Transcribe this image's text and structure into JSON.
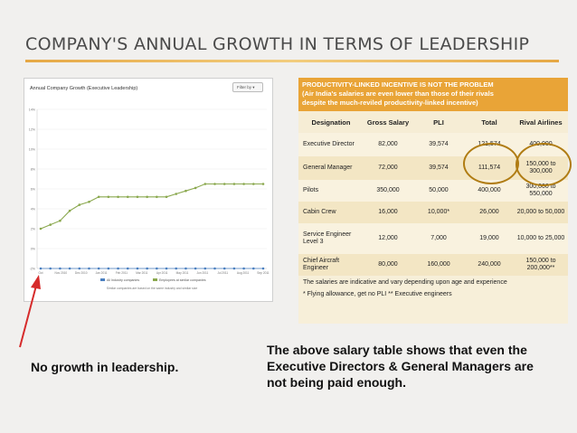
{
  "slide": {
    "title": "COMPANY'S ANNUAL GROWTH IN TERMS OF LEADERSHIP"
  },
  "chart": {
    "title": "Annual Company Growth (Executive Leadership)",
    "filter_label": "Filter by",
    "legend": [
      "All Industry companies",
      "Employees at similar companies"
    ],
    "footnote": "Similar companies are based on the same industry and similar size"
  },
  "chart_data": {
    "type": "line",
    "title": "Annual Company Growth (Executive Leadership)",
    "x": [
      "Oct 2009",
      "Nov 2009",
      "Dec 2009",
      "Jan 2010",
      "Feb 2010",
      "Mar 2010",
      "Apr 2010",
      "May 2010",
      "Jun 2010",
      "Jul 2010",
      "Aug 2010",
      "Sep 2010",
      "Oct 2010",
      "Nov 2010",
      "Dec 2010",
      "Jan 2011",
      "Feb 2011",
      "Mar 2011",
      "Apr 2011",
      "May 2011",
      "Jun 2011",
      "Jul 2011",
      "Aug 2011",
      "Sep 2011"
    ],
    "xticks": [
      "Oct",
      "Nov 2010",
      "Dec 2010",
      "Jan 2011",
      "Feb 2011",
      "Mar 2011",
      "Apr 2011",
      "May 2011",
      "Jun 2011",
      "Jul 2011",
      "Aug 2011",
      "Sep 2011"
    ],
    "series": [
      {
        "name": "All Industry companies",
        "color": "#4a7fc0",
        "values": [
          -2,
          -2,
          -2,
          -2,
          -2,
          -2,
          -2,
          -2,
          -2,
          -2,
          -2,
          -2,
          -2,
          -2,
          -2,
          -2,
          -2,
          -2,
          -2,
          -2,
          -2,
          -2,
          -2,
          -2
        ]
      },
      {
        "name": "Employees at similar companies",
        "color": "#8aa84e",
        "values": [
          2,
          2.4,
          2.8,
          3.8,
          4.4,
          4.7,
          5.2,
          5.2,
          5.2,
          5.2,
          5.2,
          5.2,
          5.2,
          5.2,
          5.5,
          5.8,
          6.1,
          6.5,
          6.5,
          6.5,
          6.5,
          6.5,
          6.5,
          6.5
        ]
      }
    ],
    "yticks": [
      "-2%",
      "0%",
      "2%",
      "4%",
      "6%",
      "8%",
      "10%",
      "12%",
      "14%"
    ],
    "ylim": [
      -2,
      14
    ],
    "grid": true,
    "legend": "bottom"
  },
  "table": {
    "header_lines": [
      "PRODUCTIVITY-LINKED INCENTIVE IS NOT THE PROBLEM",
      "(Air India's salaries are even lower than those of their rivals",
      "despite the much-reviled productivity-linked incentive)"
    ],
    "columns": [
      "Designation",
      "Gross Salary",
      "PLI",
      "Total",
      "Rival Airlines"
    ],
    "rows": [
      {
        "designation": "Executive Director",
        "gross": "82,000",
        "pli": "39,574",
        "total": "121,574",
        "rival": "400,000"
      },
      {
        "designation": "General Manager",
        "gross": "72,000",
        "pli": "39,574",
        "total": "111,574",
        "rival": "150,000 to 300,000"
      },
      {
        "designation": "Pilots",
        "gross": "350,000",
        "pli": "50,000",
        "total": "400,000",
        "rival": "300,000 to 550,000"
      },
      {
        "designation": "Cabin Crew",
        "gross": "16,000",
        "pli": "10,000*",
        "total": "26,000",
        "rival": "20,000 to 50,000"
      },
      {
        "designation": "Service Engineer Level 3",
        "gross": "12,000",
        "pli": "7,000",
        "total": "19,000",
        "rival": "10,000 to 25,000"
      },
      {
        "designation": "Chief Aircraft Engineer",
        "gross": "80,000",
        "pli": "160,000",
        "total": "240,000",
        "rival": "150,000 to 200,000**"
      }
    ],
    "note_1": "The salaries are indicative and vary depending upon age and experience",
    "note_2": "* Flying allowance, get no PLI   ** Executive engineers"
  },
  "captions": {
    "left": "No growth in leadership.",
    "right": "The above salary table shows that even the Executive Directors & General Managers are not being paid enough."
  },
  "colors": {
    "accent": "#e9a437",
    "oval": "#b07c13",
    "arrow": "#d62b2b",
    "series_flat": "#4a7fc0",
    "series_growth": "#8aa84e"
  }
}
